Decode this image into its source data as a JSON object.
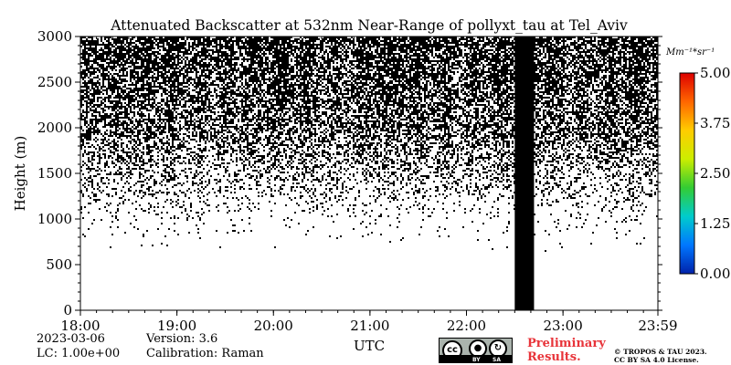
{
  "chart_data": {
    "type": "heatmap",
    "title": "Attenuated Backscatter at 532nm Near-Range of pollyxt_tau at Tel_Aviv",
    "xlabel": "UTC",
    "ylabel": "Height (m)",
    "xlim": [
      "18:00",
      "23:59"
    ],
    "x_ticks": [
      "18:00",
      "19:00",
      "20:00",
      "21:00",
      "22:00",
      "23:00",
      "23:59"
    ],
    "ylim": [
      0,
      3000
    ],
    "y_ticks": [
      "0",
      "500",
      "1000",
      "1500",
      "2000",
      "2500",
      "3000"
    ],
    "colorbar": {
      "unit": "Mm⁻¹*sr⁻¹",
      "ticks": [
        "0.00",
        "1.25",
        "2.50",
        "3.75",
        "5.00"
      ],
      "range": [
        0,
        5
      ],
      "colormap": [
        "#0022aa",
        "#0077ff",
        "#00cccc",
        "#33cc33",
        "#ccee00",
        "#ffcc00",
        "#ff6600",
        "#dd0000"
      ]
    },
    "signal_profile": {
      "description_heights_m": [
        600,
        1000,
        1500,
        2000,
        3000
      ],
      "point_density": [
        0.0,
        0.04,
        0.28,
        0.55,
        0.75
      ]
    },
    "data_gap": {
      "start": "22:30",
      "end": "22:42"
    },
    "grid": false,
    "dense_color": "#000000"
  },
  "footer": {
    "date": "2023-03-06",
    "lc": "LC: 1.00e+00",
    "version": "Version: 3.6",
    "calibration": "Calibration: Raman",
    "preliminary_line1": "Preliminary",
    "preliminary_line2": "Results.",
    "copyright_line1": "© TROPOS & TAU 2023.",
    "copyright_line2": "CC BY SA 4.0 License.",
    "license_badge": {
      "cc": "cc",
      "by": "BY",
      "sa": "SA"
    }
  }
}
